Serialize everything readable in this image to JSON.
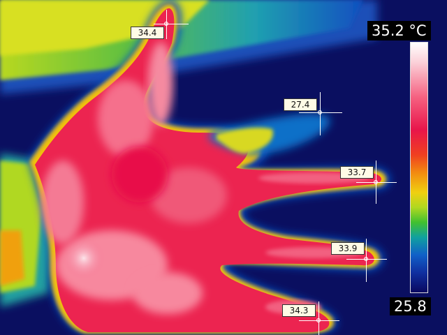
{
  "scale": {
    "max_label": "35.2 °C",
    "min_label": "25.8",
    "palette": "ironbow-rainbow",
    "colors": [
      "#ffffff",
      "#f56080",
      "#e8154a",
      "#f28a10",
      "#f0d010",
      "#40c030",
      "#10a0a0",
      "#1060c8",
      "#0a0860"
    ]
  },
  "subject": "hand",
  "spots": [
    {
      "id": "thumb",
      "value": "34.4"
    },
    {
      "id": "index-finger",
      "value": "27.4"
    },
    {
      "id": "middle-finger",
      "value": "33.7"
    },
    {
      "id": "ring-finger",
      "value": "33.9"
    },
    {
      "id": "little-finger",
      "value": "34.3"
    }
  ]
}
